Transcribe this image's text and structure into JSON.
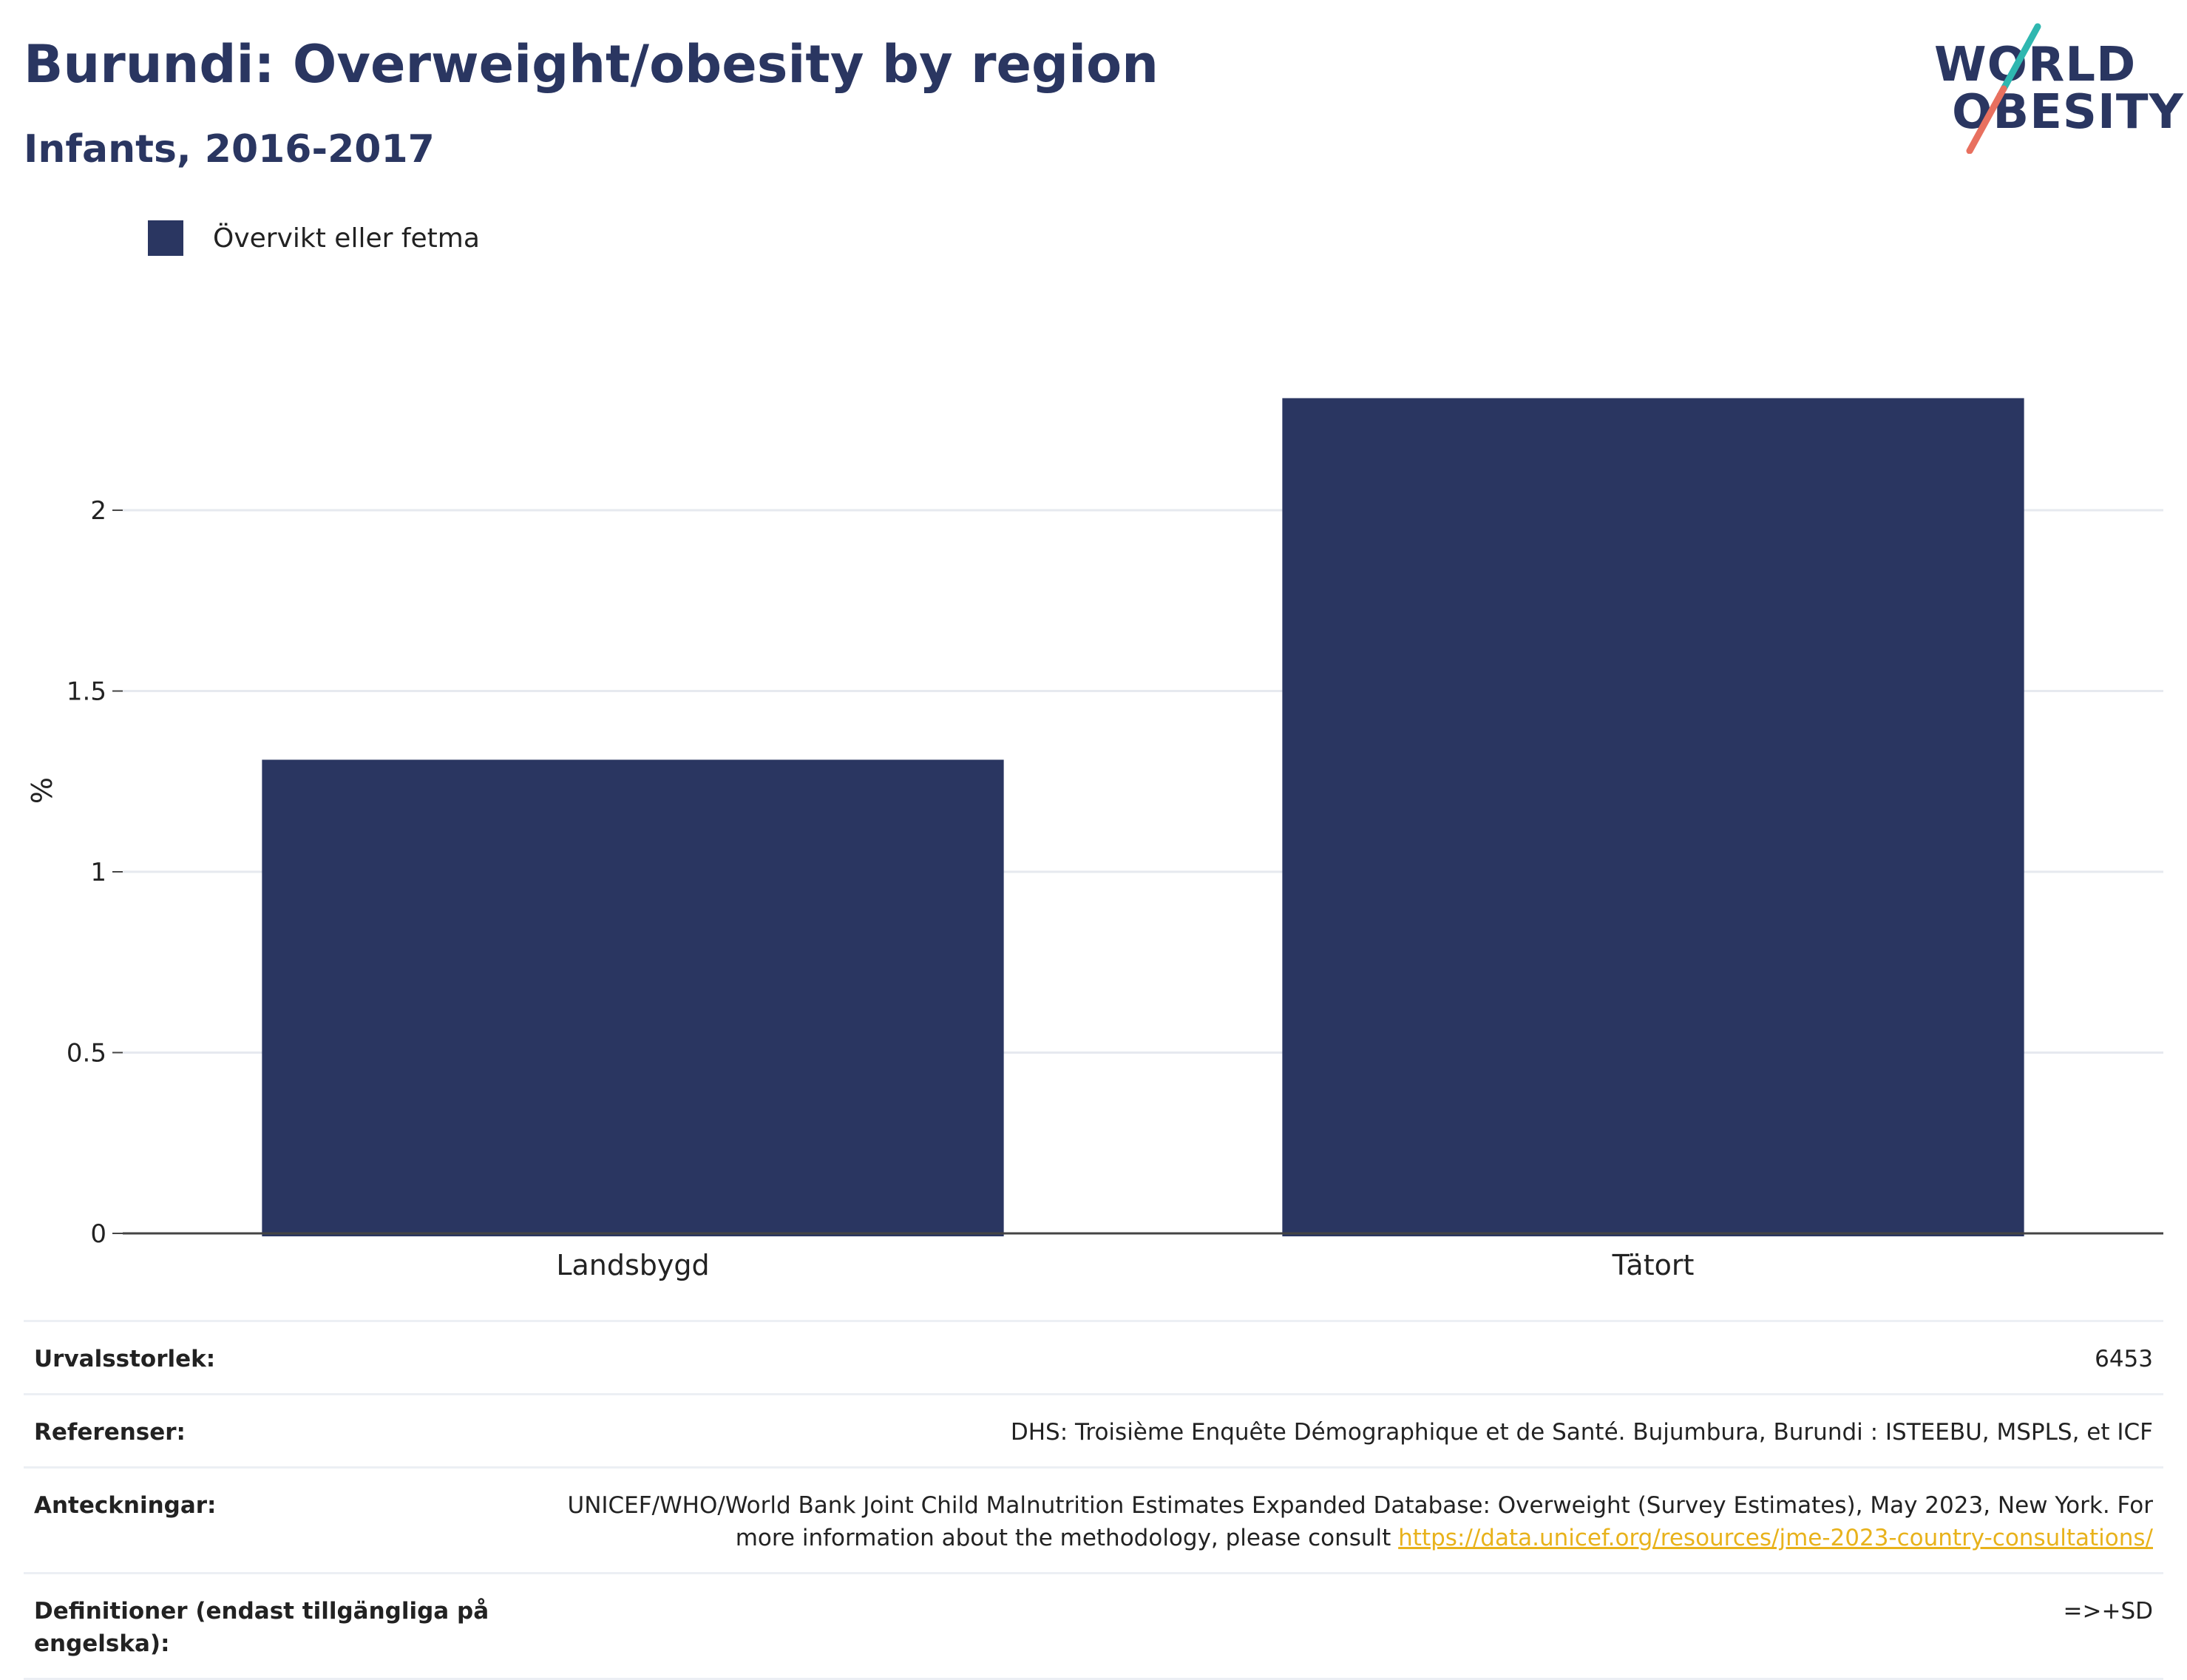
{
  "header": {
    "title": "Burundi: Overweight/obesity by region",
    "subtitle": "Infants, 2016-2017"
  },
  "logo": {
    "line1": "WORLD",
    "line2": "OBESITY",
    "colors": {
      "text": "#2a3661",
      "slash_top": "#2fb7b0",
      "slash_bottom": "#e8705f"
    }
  },
  "colors": {
    "bar": "#2a3661",
    "grid": "#e6e9ef",
    "axis": "#444444",
    "link": "#e8b21b"
  },
  "chart_data": {
    "type": "bar",
    "categories": [
      "Landsbygd",
      "Tätort"
    ],
    "series": [
      {
        "name": "Övervikt eller fetma",
        "values": [
          1.31,
          2.31
        ]
      }
    ],
    "ylabel": "%",
    "ylim": [
      0,
      2.45
    ],
    "yticks": [
      0,
      0.5,
      1,
      1.5,
      2
    ],
    "ytick_labels": [
      "0",
      "0.5",
      "1",
      "1.5",
      "2"
    ],
    "grid": true,
    "legend": "top-left"
  },
  "info": {
    "sample_size_label": "Urvalsstorlek:",
    "sample_size_value": "6453",
    "references_label": "Referenser:",
    "references_value": "DHS: Troisième Enquête Démographique et de Santé. Bujumbura, Burundi : ISTEEBU, MSPLS, et ICF",
    "notes_label": "Anteckningar:",
    "notes_text": "UNICEF/WHO/World Bank Joint Child Malnutrition Estimates Expanded Database: Overweight (Survey Estimates), May 2023, New York. For more information about the methodology, please consult ",
    "notes_link": "https://data.unicef.org/resources/jme-2023-country-consultations/",
    "definitions_label": "Definitioner (endast tillgängliga på engelska):",
    "definitions_value": "=>+SD"
  }
}
